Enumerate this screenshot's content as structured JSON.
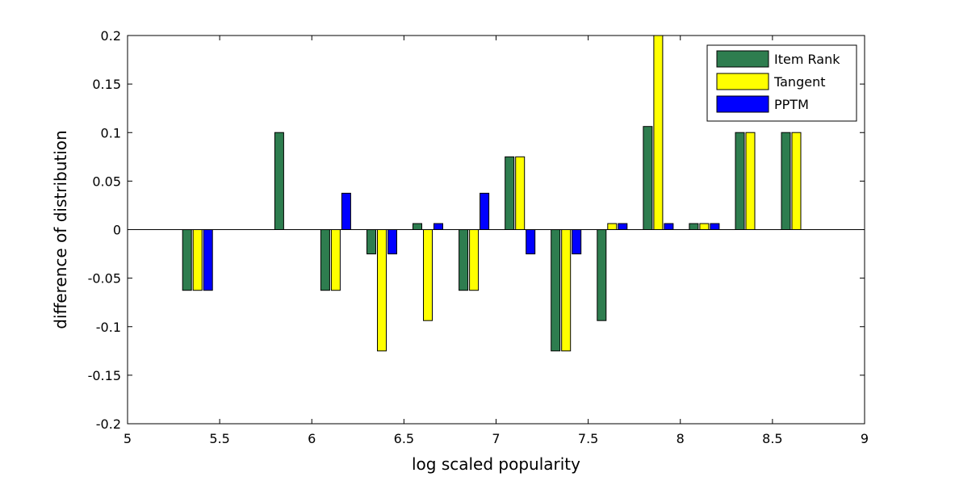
{
  "chart_data": {
    "type": "bar",
    "xlabel": "log scaled popularity",
    "ylabel": "difference of distribution",
    "xlim": [
      5,
      9
    ],
    "ylim": [
      -0.2,
      0.2
    ],
    "xticks": [
      5,
      5.5,
      6,
      6.5,
      7,
      7.5,
      8,
      8.5,
      9
    ],
    "xtick_labels": [
      "5",
      "5.5",
      "6",
      "6.5",
      "7",
      "7.5",
      "8",
      "8.5",
      "9"
    ],
    "yticks": [
      -0.2,
      -0.15,
      -0.1,
      -0.05,
      0,
      0.05,
      0.1,
      0.15,
      0.2
    ],
    "ytick_labels": [
      "-0.2",
      "-0.15",
      "-0.1",
      "-0.05",
      "0",
      "0.05",
      "0.1",
      "0.15",
      "0.2"
    ],
    "x": [
      5.38,
      5.88,
      6.13,
      6.38,
      6.63,
      6.88,
      7.13,
      7.38,
      7.63,
      7.88,
      8.13,
      8.38,
      8.63
    ],
    "series": [
      {
        "name": "Item Rank",
        "color": "#2e7d4f",
        "values": [
          -0.0625,
          0.1,
          -0.0625,
          -0.025,
          0.00625,
          -0.0625,
          0.075,
          -0.125,
          -0.09375,
          0.10625,
          0.00625,
          0.1,
          0.1
        ]
      },
      {
        "name": "Tangent",
        "color": "#ffff00",
        "values": [
          -0.0625,
          0,
          -0.0625,
          -0.125,
          -0.09375,
          -0.0625,
          0.075,
          -0.125,
          0.00625,
          0.2,
          0.00625,
          0.1,
          0.1
        ]
      },
      {
        "name": "PPTM",
        "color": "#0000ff",
        "values": [
          -0.0625,
          0,
          0.0375,
          -0.025,
          0.00625,
          0.0375,
          -0.025,
          -0.025,
          0.00625,
          0.00625,
          0.00625,
          0,
          0
        ]
      }
    ],
    "legend_position": "top-right",
    "grid": false
  }
}
